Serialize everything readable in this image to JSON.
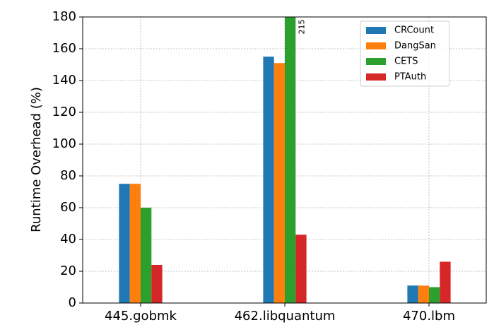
{
  "chart_data": {
    "type": "bar",
    "ylabel": "Runtime Overhead (%)",
    "categories": [
      "445.gobmk",
      "462.libquantum",
      "470.lbm"
    ],
    "series": [
      {
        "name": "CRCount",
        "color": "#1f77b4",
        "values": [
          75,
          155,
          11
        ]
      },
      {
        "name": "DangSan",
        "color": "#ff7f0e",
        "values": [
          75,
          151,
          11
        ]
      },
      {
        "name": "CETS",
        "color": "#2ca02c",
        "values": [
          60,
          215,
          10
        ],
        "value_labels": [
          null,
          "215",
          null
        ]
      },
      {
        "name": "PTAuth",
        "color": "#d62728",
        "values": [
          24,
          43,
          26
        ]
      }
    ],
    "ylim": [
      0,
      180
    ],
    "yticks": [
      0,
      20,
      40,
      60,
      80,
      100,
      120,
      140,
      160,
      180
    ],
    "grid": true,
    "legend": "upper right"
  }
}
